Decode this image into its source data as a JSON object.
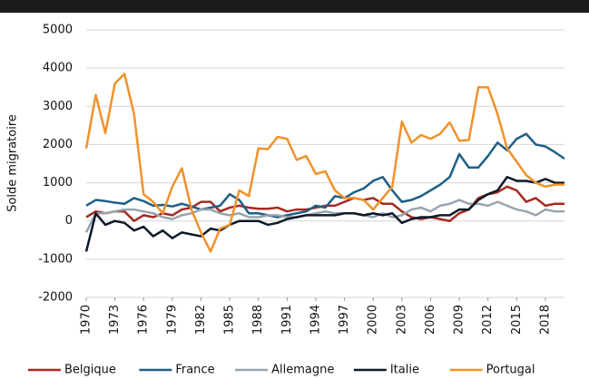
{
  "chart_data": {
    "type": "line",
    "y_label": "Solde migratoire",
    "x": [
      1970,
      1971,
      1972,
      1973,
      1974,
      1975,
      1976,
      1977,
      1978,
      1979,
      1980,
      1981,
      1982,
      1983,
      1984,
      1985,
      1986,
      1987,
      1988,
      1989,
      1990,
      1991,
      1992,
      1993,
      1994,
      1995,
      1996,
      1997,
      1998,
      1999,
      2000,
      2001,
      2002,
      2003,
      2004,
      2005,
      2006,
      2007,
      2008,
      2009,
      2010,
      2011,
      2012,
      2013,
      2014,
      2015,
      2016,
      2017,
      2018,
      2019,
      2020
    ],
    "xlim": [
      1970,
      2020
    ],
    "xticks": [
      1970,
      1973,
      1976,
      1979,
      1982,
      1985,
      1988,
      1991,
      1994,
      1997,
      2000,
      2003,
      2006,
      2009,
      2012,
      2015,
      2018
    ],
    "ylim": [
      -2000,
      5000
    ],
    "yticks": [
      -2000,
      -1000,
      0,
      1000,
      2000,
      3000,
      4000,
      5000
    ],
    "grid": true,
    "legend": "bottom",
    "series": [
      {
        "name": "Belgique",
        "color": "#a52a1f",
        "values": [
          100,
          250,
          200,
          250,
          250,
          0,
          150,
          100,
          200,
          150,
          300,
          350,
          500,
          500,
          250,
          350,
          400,
          350,
          320,
          320,
          350,
          250,
          300,
          300,
          350,
          400,
          400,
          500,
          600,
          550,
          600,
          450,
          450,
          250,
          100,
          50,
          100,
          50,
          0,
          200,
          300,
          600,
          700,
          750,
          900,
          800,
          500,
          600,
          400,
          450,
          450
        ]
      },
      {
        "name": "France",
        "color": "#1f5f85",
        "values": [
          400,
          550,
          520,
          480,
          450,
          600,
          520,
          400,
          420,
          380,
          450,
          380,
          300,
          350,
          400,
          700,
          550,
          200,
          200,
          150,
          100,
          150,
          200,
          250,
          400,
          350,
          650,
          600,
          750,
          850,
          1050,
          1150,
          800,
          500,
          550,
          650,
          800,
          950,
          1150,
          1750,
          1400,
          1400,
          1700,
          2050,
          1850,
          2150,
          2280,
          2000,
          1950,
          1800,
          1630
        ]
      },
      {
        "name": "Allemagne",
        "color": "#98a4ae",
        "values": [
          -300,
          200,
          200,
          250,
          300,
          300,
          250,
          200,
          100,
          50,
          150,
          200,
          300,
          300,
          200,
          150,
          200,
          100,
          100,
          150,
          150,
          100,
          100,
          150,
          200,
          250,
          200,
          200,
          200,
          150,
          100,
          200,
          100,
          150,
          300,
          350,
          250,
          400,
          450,
          550,
          450,
          450,
          400,
          500,
          400,
          300,
          250,
          150,
          300,
          250,
          250
        ]
      },
      {
        "name": "Italie",
        "color": "#0e1a2b",
        "values": [
          -800,
          200,
          -100,
          0,
          -50,
          -250,
          -150,
          -400,
          -250,
          -450,
          -300,
          -350,
          -400,
          -200,
          -250,
          -100,
          0,
          0,
          0,
          -100,
          -50,
          50,
          100,
          150,
          150,
          150,
          150,
          200,
          200,
          150,
          200,
          150,
          200,
          -50,
          50,
          100,
          100,
          150,
          150,
          300,
          300,
          550,
          700,
          800,
          1150,
          1050,
          1050,
          1000,
          1100,
          1000,
          1000
        ]
      },
      {
        "name": "Portugal",
        "color": "#f0922b",
        "values": [
          1900,
          3300,
          2300,
          3600,
          3850,
          2800,
          700,
          500,
          200,
          900,
          1380,
          300,
          -300,
          -800,
          -200,
          -100,
          800,
          650,
          1900,
          1880,
          2200,
          2150,
          1600,
          1700,
          1230,
          1300,
          800,
          600,
          600,
          550,
          300,
          600,
          900,
          2600,
          2050,
          2250,
          2150,
          2280,
          2580,
          2100,
          2120,
          3500,
          3500,
          2800,
          1900,
          1550,
          1200,
          1000,
          900,
          950,
          950
        ]
      }
    ]
  }
}
